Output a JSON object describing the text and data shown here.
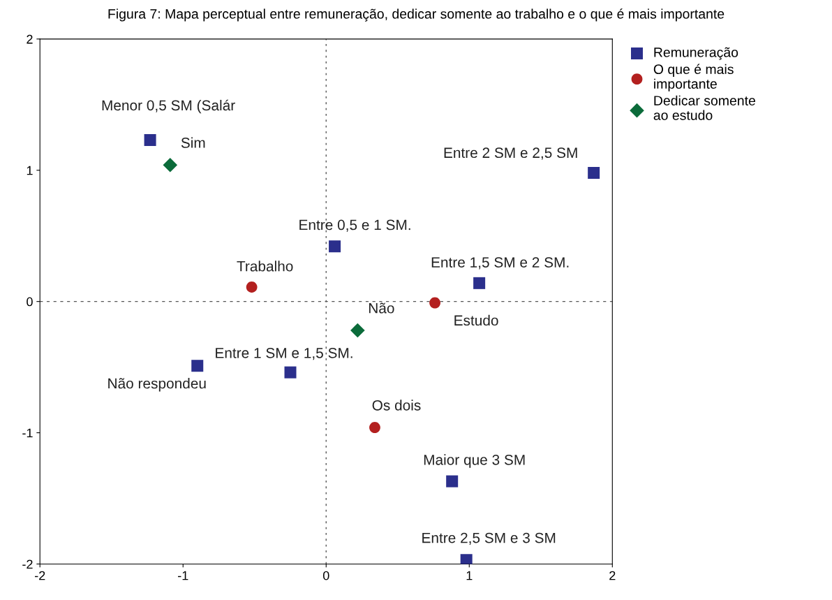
{
  "chart_data": {
    "type": "scatter",
    "title": "Figura 7: Mapa perceptual entre remuneração, dedicar somente ao trabalho e o que é mais importante",
    "series": [
      {
        "name": "Remuneração",
        "color": "#2b2f8c",
        "marker": "square",
        "x": [
          -1.23,
          1.87,
          0.06,
          1.07,
          -0.9,
          -0.25,
          0.88,
          0.98
        ],
        "values": [
          1.23,
          0.98,
          0.42,
          0.14,
          -0.49,
          -0.54,
          -1.37,
          -1.97
        ]
      },
      {
        "name": "O que é mais\nimportante",
        "color": "#b3201f",
        "marker": "circle",
        "x": [
          -0.52,
          0.76,
          0.34
        ],
        "values": [
          0.11,
          -0.01,
          -0.96
        ]
      },
      {
        "name": "Dedicar somente\nao estudo",
        "color": "#0b6b3a",
        "marker": "diamond",
        "x": [
          -1.09,
          0.22
        ],
        "values": [
          1.04,
          -0.22
        ]
      }
    ],
    "annotations": [
      {
        "text": "Menor 0,5 SM (Salár",
        "x": -1.23,
        "y": 1.23
      },
      {
        "text": "Sim",
        "x": -1.09,
        "y": 1.04
      },
      {
        "text": "Entre 2 SM e 2,5 SM",
        "x": 1.87,
        "y": 0.98
      },
      {
        "text": "Entre 0,5 e 1 SM.",
        "x": 0.06,
        "y": 0.42
      },
      {
        "text": "Trabalho",
        "x": -0.52,
        "y": 0.11
      },
      {
        "text": "Entre 1,5 SM e 2 SM.",
        "x": 1.07,
        "y": 0.14
      },
      {
        "text": "Não",
        "x": 0.22,
        "y": -0.22
      },
      {
        "text": "Estudo",
        "x": 0.76,
        "y": -0.01
      },
      {
        "text": "Entre 1 SM e 1,5 SM.",
        "x": -0.25,
        "y": -0.54
      },
      {
        "text": "Não respondeu",
        "x": -0.9,
        "y": -0.49
      },
      {
        "text": "Os dois",
        "x": 0.34,
        "y": -0.96
      },
      {
        "text": "Maior que 3 SM",
        "x": 0.88,
        "y": -1.37
      },
      {
        "text": "Entre 2,5 SM e 3 SM",
        "x": 0.98,
        "y": -1.97
      }
    ],
    "xlim": [
      -2,
      2
    ],
    "ylim": [
      -2,
      2
    ],
    "xticks": [
      -2,
      -1,
      0,
      1,
      2
    ],
    "yticks": [
      -2,
      -1,
      0,
      1,
      2
    ],
    "ref_lines": [
      {
        "axis": "x",
        "value": 0,
        "line_style": "dotted",
        "color": "#555555"
      },
      {
        "axis": "y",
        "value": 0,
        "line_style": "dashed",
        "color": "#555555"
      }
    ],
    "legend": "top right",
    "grid": false
  }
}
